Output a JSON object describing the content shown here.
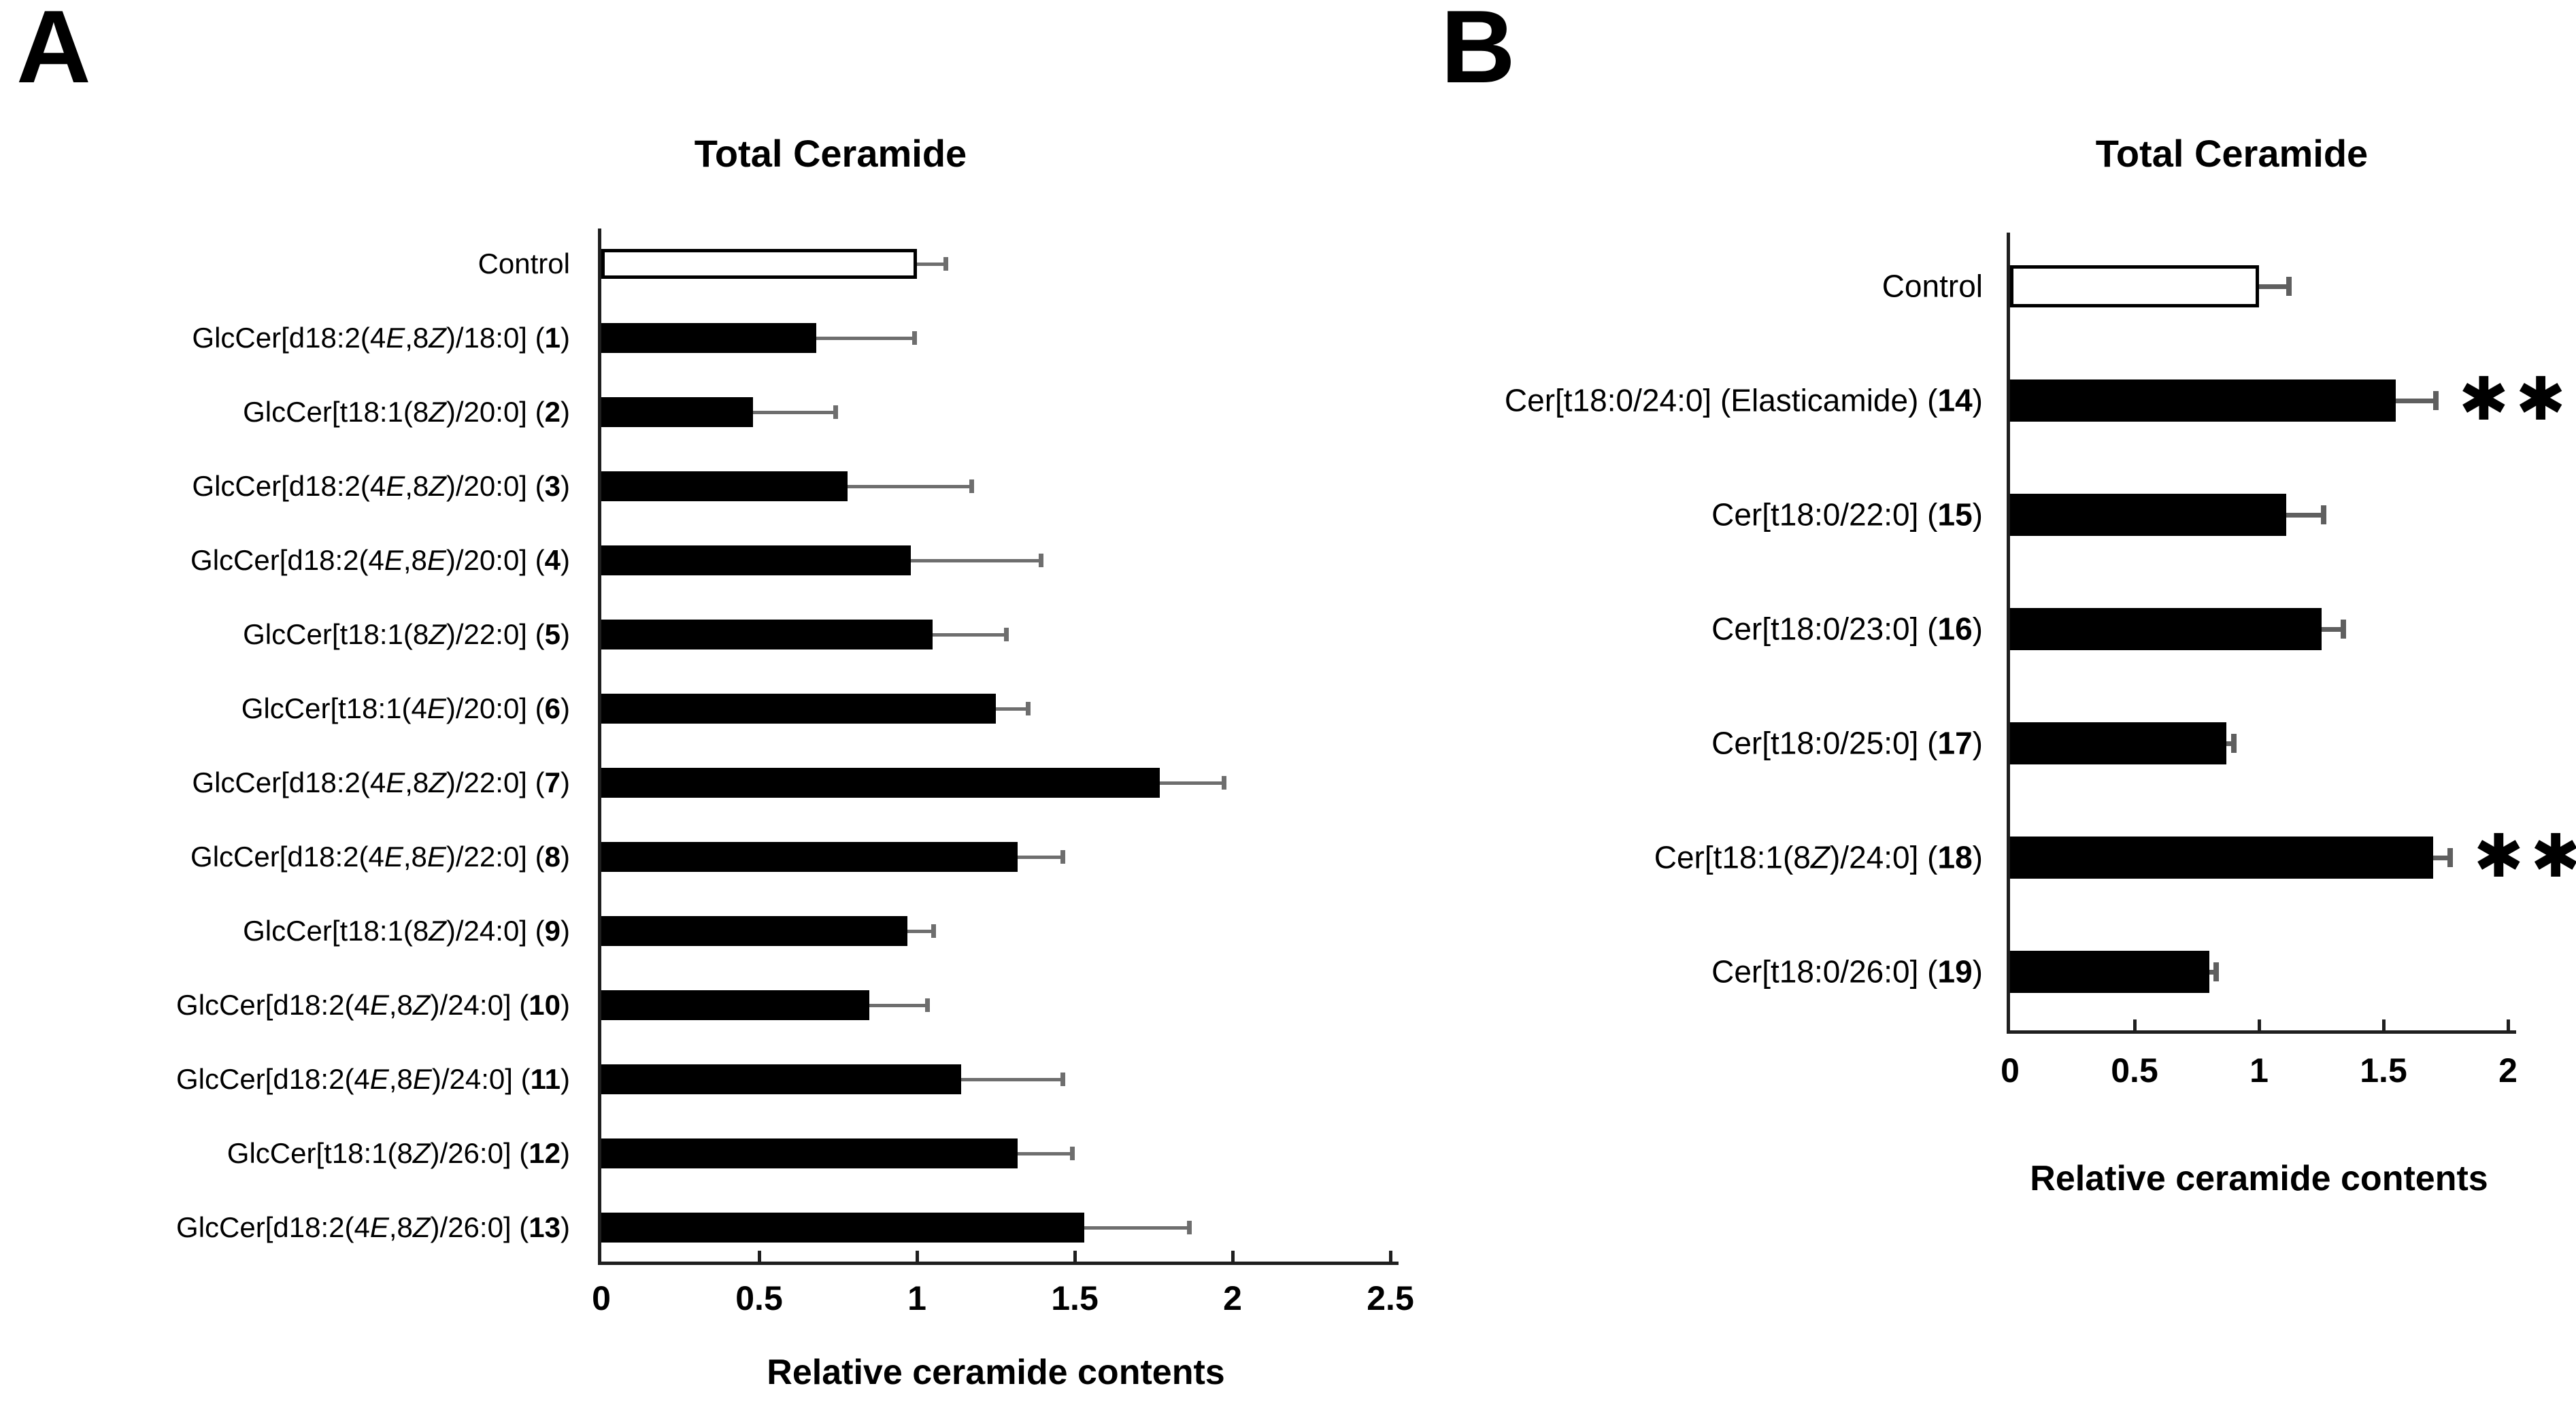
{
  "figure": {
    "background": "#ffffff",
    "axis_color": "#1f1f1f",
    "bar_black": "#000000",
    "bar_white": "#ffffff",
    "error_bar_color_a": "#6e6e6e",
    "error_bar_color_b": "#5f5f5f",
    "significance_symbol": "**"
  },
  "chart_data": [
    {
      "type": "bar",
      "orientation": "horizontal",
      "panel_letter": "A",
      "title": "Total Ceramide",
      "xlabel": "Relative ceramide contents",
      "xlim": [
        0,
        2.5
      ],
      "xticks": [
        0,
        0.5,
        1,
        1.5,
        2,
        2.5
      ],
      "grid": false,
      "legend": false,
      "categories": [
        "Control",
        "GlcCer[d18:2(4E,8Z)/18:0] (1)",
        "GlcCer[t18:1(8Z)/20:0] (2)",
        "GlcCer[d18:2(4E,8Z)/20:0] (3)",
        "GlcCer[d18:2(4E,8E)/20:0] (4)",
        "GlcCer[t18:1(8Z)/22:0] (5)",
        "GlcCer[t18:1(4E)/20:0] (6)",
        "GlcCer[d18:2(4E,8Z)/22:0] (7)",
        "GlcCer[d18:2(4E,8E)/22:0] (8)",
        "GlcCer[t18:1(8Z)/24:0] (9)",
        "GlcCer[d18:2(4E,8Z)/24:0] (10)",
        "GlcCer[d18:2(4E,8E)/24:0] (11)",
        "GlcCer[t18:1(8Z)/26:0] (12)",
        "GlcCer[d18:2(4E,8Z)/26:0] (13)"
      ],
      "values": [
        1.0,
        0.68,
        0.48,
        0.78,
        0.98,
        1.05,
        1.25,
        1.77,
        1.32,
        0.97,
        0.85,
        1.14,
        1.32,
        1.53
      ],
      "errors_plus": [
        0.1,
        0.32,
        0.27,
        0.4,
        0.42,
        0.24,
        0.11,
        0.21,
        0.15,
        0.09,
        0.19,
        0.33,
        0.18,
        0.34
      ],
      "significance": [
        "",
        "",
        "",
        "",
        "",
        "",
        "",
        "",
        "",
        "",
        "",
        "",
        "",
        ""
      ],
      "bar_fills": [
        "white",
        "black",
        "black",
        "black",
        "black",
        "black",
        "black",
        "black",
        "black",
        "black",
        "black",
        "black",
        "black",
        "black"
      ]
    },
    {
      "type": "bar",
      "orientation": "horizontal",
      "panel_letter": "B",
      "title": "Total Ceramide",
      "xlabel": "Relative ceramide contents",
      "xlim": [
        0,
        2
      ],
      "xticks": [
        0,
        0.5,
        1,
        1.5,
        2
      ],
      "grid": false,
      "legend": false,
      "categories": [
        "Control",
        "Cer[t18:0/24:0] (Elasticamide) (14)",
        "Cer[t18:0/22:0] (15)",
        "Cer[t18:0/23:0] (16)",
        "Cer[t18:0/25:0] (17)",
        "Cer[t18:1(8Z)/24:0] (18)",
        "Cer[t18:0/26:0] (19)"
      ],
      "values": [
        1.0,
        1.55,
        1.11,
        1.25,
        0.87,
        1.7,
        0.8
      ],
      "errors_plus": [
        0.13,
        0.17,
        0.16,
        0.1,
        0.04,
        0.08,
        0.04
      ],
      "significance": [
        "",
        "**",
        "",
        "",
        "",
        "**",
        ""
      ],
      "bar_fills": [
        "white",
        "black",
        "black",
        "black",
        "black",
        "black",
        "black"
      ]
    }
  ]
}
